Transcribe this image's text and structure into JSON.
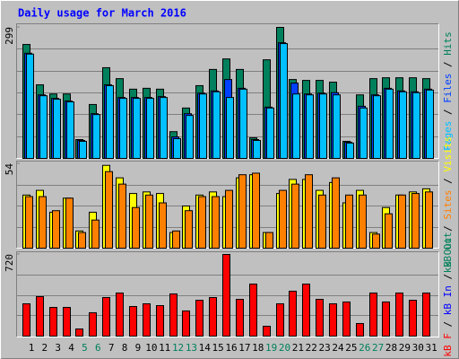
{
  "title": "Daily usage for March 2016",
  "legend_separator": "/",
  "chart_data": [
    {
      "type": "bar",
      "ylim": [
        0,
        299
      ],
      "yticks": [
        299
      ],
      "legend": [
        {
          "name": "Pages",
          "color": "#00c0ff"
        },
        {
          "name": "Files",
          "color": "#0040ff"
        },
        {
          "name": "Hits",
          "color": "#00805c"
        }
      ],
      "series": [
        {
          "color": "#00805c",
          "values": [
            260,
            168,
            147,
            147,
            43,
            123,
            207,
            182,
            158,
            160,
            158,
            61,
            115,
            166,
            203,
            227,
            203,
            47,
            225,
            299,
            180,
            178,
            178,
            174,
            39,
            145,
            182,
            184,
            184,
            184,
            182
          ]
        },
        {
          "color": "#0040ff",
          "values": [
            240,
            145,
            137,
            131,
            41,
            102,
            168,
            139,
            139,
            139,
            141,
            49,
            102,
            149,
            154,
            180,
            160,
            43,
            117,
            264,
            172,
            147,
            149,
            150,
            37,
            119,
            145,
            160,
            154,
            152,
            158
          ]
        },
        {
          "color": "#00c0ff",
          "values": [
            238,
            143,
            135,
            129,
            39,
            100,
            166,
            137,
            137,
            137,
            139,
            45,
            98,
            147,
            152,
            139,
            158,
            41,
            115,
            262,
            147,
            145,
            147,
            145,
            35,
            115,
            143,
            158,
            152,
            150,
            156
          ]
        }
      ]
    },
    {
      "type": "bar",
      "ylim": [
        0,
        54
      ],
      "yticks": [
        54
      ],
      "legend": [
        {
          "name": "kB Out",
          "color": "#00805c"
        },
        {
          "name": "Sites",
          "color": "#ff8000"
        },
        {
          "name": "Visits",
          "color": "#ffff00"
        }
      ],
      "series": [
        {
          "color": "#ffff00",
          "values": [
            34,
            37,
            23,
            32,
            11,
            23,
            53,
            45,
            35,
            36,
            35,
            10,
            27,
            34,
            36,
            33,
            45,
            47,
            10,
            35,
            44,
            44,
            37,
            42,
            29,
            37,
            10,
            26,
            34,
            36,
            38
          ]
        },
        {
          "color": "#ff8000",
          "values": [
            33,
            33,
            24,
            32,
            10,
            18,
            49,
            41,
            26,
            34,
            29,
            11,
            24,
            33,
            33,
            37,
            47,
            48,
            10,
            37,
            41,
            47,
            34,
            45,
            34,
            34,
            9,
            22,
            34,
            35,
            36
          ]
        }
      ]
    },
    {
      "type": "bar",
      "ylim": [
        0,
        720
      ],
      "yticks": [
        720
      ],
      "legend": [
        {
          "name": "kB F",
          "color": "#ff0000"
        },
        {
          "name": "kB In",
          "color": "#0000ff"
        },
        {
          "name": "kB Out",
          "color": "#00805c"
        }
      ],
      "categories": [
        "1",
        "2",
        "3",
        "4",
        "5",
        "6",
        "7",
        "8",
        "9",
        "10",
        "11",
        "12",
        "13",
        "14",
        "15",
        "16",
        "17",
        "18",
        "19",
        "20",
        "21",
        "22",
        "23",
        "24",
        "25",
        "26",
        "27",
        "28",
        "29",
        "30",
        "31"
      ],
      "category_colors": [
        "#000000",
        "#000000",
        "#000000",
        "#000000",
        "#00805c",
        "#00805c",
        "#000000",
        "#000000",
        "#000000",
        "#000000",
        "#000000",
        "#00805c",
        "#00805c",
        "#000000",
        "#000000",
        "#000000",
        "#000000",
        "#000000",
        "#00805c",
        "#00805c",
        "#000000",
        "#000000",
        "#000000",
        "#000000",
        "#000000",
        "#00805c",
        "#00805c",
        "#000000",
        "#000000",
        "#000000",
        "#000000"
      ],
      "series": [
        {
          "color": "#ff0000",
          "values": [
            285,
            348,
            253,
            253,
            63,
            206,
            340,
            380,
            261,
            285,
            269,
            372,
            222,
            316,
            340,
            720,
            324,
            459,
            87,
            285,
            396,
            459,
            324,
            285,
            301,
            111,
            380,
            301,
            380,
            316,
            380
          ]
        }
      ]
    }
  ]
}
